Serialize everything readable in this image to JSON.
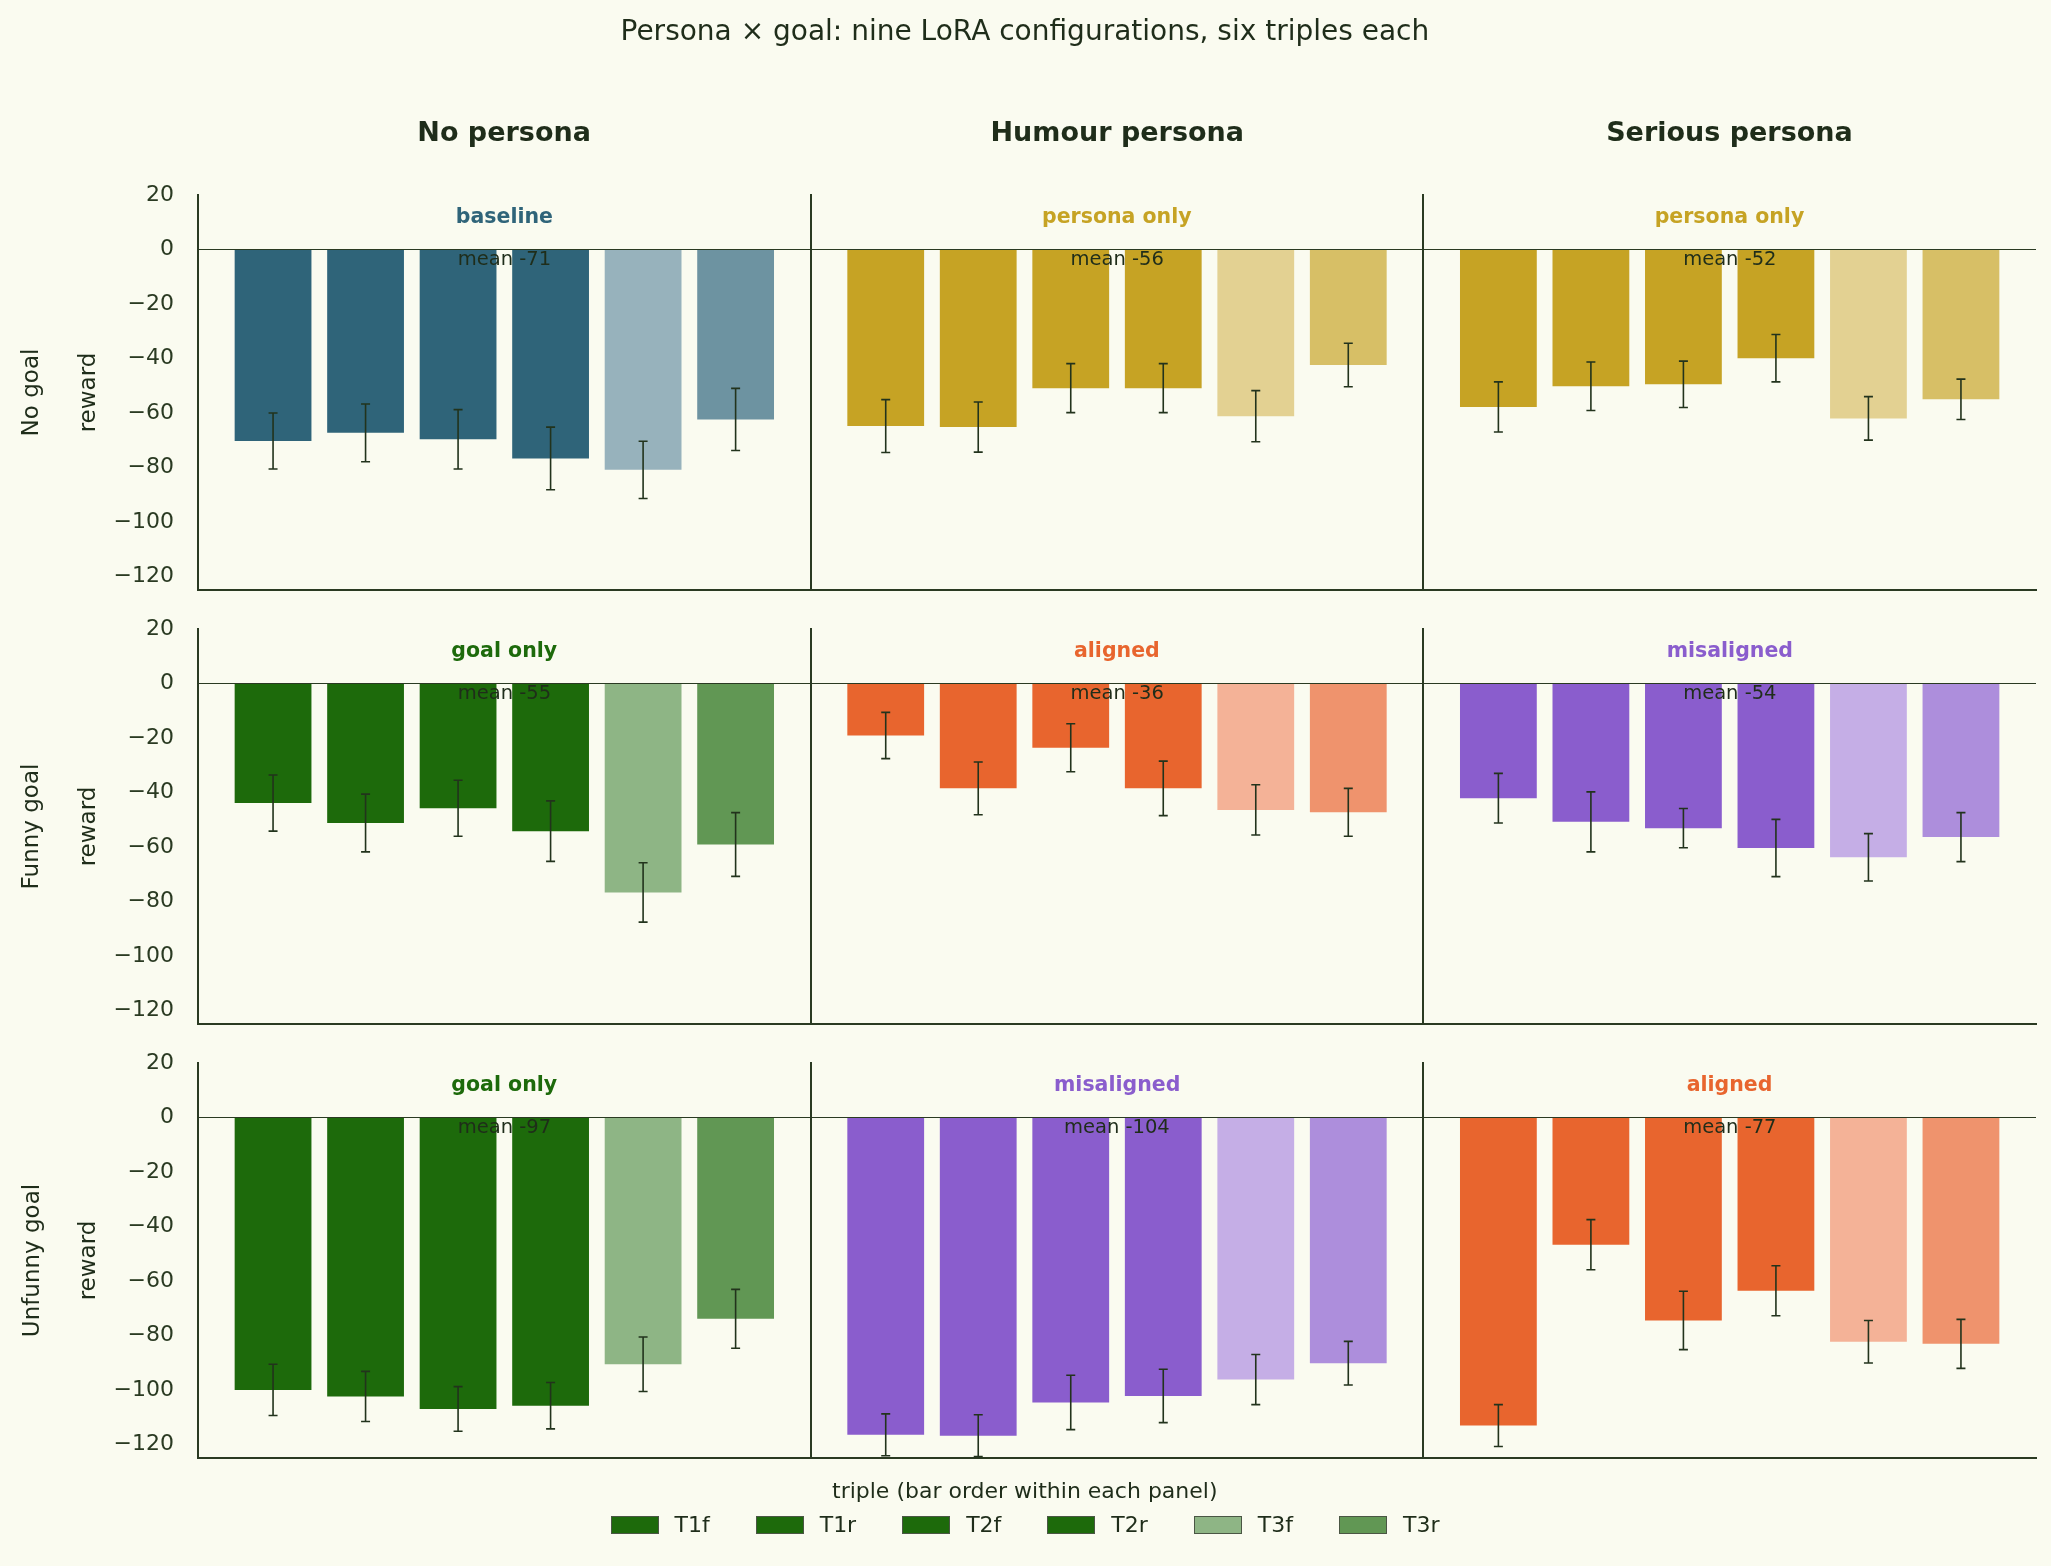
{
  "chart_data": [
    {
      "type": "other",
      "title": "Persona × goal: nine LoRA configurations, six triples each"
    },
    {
      "type": "bar",
      "title": "No goal",
      "ylabel": "reward",
      "categories": [
        "No persona",
        "Humour persona",
        "Serious persona"
      ],
      "annotations": [
        "baseline",
        "persona only",
        "persona only",
        "mean -71",
        "mean -56",
        "mean -52"
      ],
      "series": [
        {
          "colors": [
            "#2f6479",
            "#c6a324",
            "#c6a324"
          ],
          "values": [
            -70.3,
            -64.8,
            -57.8
          ],
          "errors": [
            10.3,
            9.7,
            9.2
          ]
        },
        {
          "colors": [
            "#2f6479",
            "#c6a324",
            "#c6a324"
          ],
          "values": [
            -67.3,
            -65.2,
            -50.2
          ],
          "errors": [
            10.6,
            9.2,
            8.9
          ]
        },
        {
          "colors": [
            "#2f6479",
            "#c6a324",
            "#c6a324"
          ],
          "values": [
            -69.7,
            -50.9,
            -49.5
          ],
          "errors": [
            10.9,
            9.0,
            8.5
          ]
        },
        {
          "colors": [
            "#2f6479",
            "#c6a324",
            "#c6a324"
          ],
          "values": [
            -76.7,
            -50.9,
            -39.9
          ],
          "errors": [
            11.5,
            9.0,
            8.7
          ]
        },
        {
          "colors": [
            "#97b2bc",
            "#e3d192",
            "#e3d192"
          ],
          "values": [
            -80.9,
            -61.2,
            -62.0
          ],
          "errors": [
            10.5,
            9.4,
            8.0
          ]
        },
        {
          "colors": [
            "#6d93a1",
            "#d7bf66",
            "#d7bf66"
          ],
          "values": [
            -62.4,
            -42.4,
            -55.0
          ],
          "errors": [
            11.4,
            8.0,
            7.4
          ]
        }
      ],
      "ylim": [
        -125,
        20
      ],
      "yticks": [
        20,
        0,
        -20,
        -40,
        -60,
        -80,
        -100,
        -120
      ],
      "ref_lines": [
        {
          "axis": "y",
          "value": 0
        }
      ]
    },
    {
      "type": "bar",
      "title": "Funny goal",
      "ylabel": "reward",
      "categories": [
        null,
        null,
        null
      ],
      "annotations": [
        "goal only",
        "aligned",
        "misaligned",
        "mean -55",
        "mean -36",
        "mean -54"
      ],
      "series": [
        {
          "colors": [
            "#1d6a0b",
            "#e8652e",
            "#8a5dcd"
          ],
          "values": [
            -43.9,
            -19.1,
            -42.1
          ],
          "errors": [
            10.3,
            8.5,
            9.1
          ]
        },
        {
          "colors": [
            "#1d6a0b",
            "#e8652e",
            "#8a5dcd"
          ],
          "values": [
            -51.2,
            -38.5,
            -50.8
          ],
          "errors": [
            10.6,
            9.7,
            11.0
          ]
        },
        {
          "colors": [
            "#1d6a0b",
            "#e8652e",
            "#8a5dcd"
          ],
          "values": [
            -45.8,
            -23.6,
            -53.1
          ],
          "errors": [
            10.3,
            8.8,
            7.2
          ]
        },
        {
          "colors": [
            "#1d6a0b",
            "#e8652e",
            "#8a5dcd"
          ],
          "values": [
            -54.2,
            -38.5,
            -60.4
          ],
          "errors": [
            11.1,
            10.0,
            10.5
          ]
        },
        {
          "colors": [
            "#8eb585",
            "#f4b297",
            "#c5aee6"
          ],
          "values": [
            -76.7,
            -46.4,
            -63.8
          ],
          "errors": [
            10.9,
            9.2,
            8.7
          ]
        },
        {
          "colors": [
            "#619754",
            "#ef936d",
            "#ad8edc"
          ],
          "values": [
            -59.1,
            -47.3,
            -56.4
          ],
          "errors": [
            11.7,
            8.8,
            9.0
          ]
        }
      ],
      "ylim": [
        -125,
        20
      ],
      "yticks": [
        20,
        0,
        -20,
        -40,
        -60,
        -80,
        -100,
        -120
      ],
      "tick_labels": "y",
      "ref_lines": [
        {
          "axis": "y",
          "value": 0
        }
      ]
    },
    {
      "type": "bar",
      "title": "Unfunny goal",
      "ylabel": "reward",
      "xlabel": "triple (bar order within each panel)",
      "legend": "bottom",
      "categories": [
        null,
        null,
        null
      ],
      "annotations": [
        "goal only",
        "misaligned",
        "aligned",
        "mean -97",
        "mean -104",
        "mean -77"
      ],
      "series": [
        {
          "name": "T1f",
          "colors": [
            "#1d6a0b",
            "#8a5dcd",
            "#e8652e"
          ],
          "values": [
            -100.0,
            -116.5,
            -113.1
          ],
          "errors": [
            9.4,
            7.7,
            7.7
          ]
        },
        {
          "name": "T1r",
          "colors": [
            "#1d6a0b",
            "#8a5dcd",
            "#e8652e"
          ],
          "values": [
            -102.4,
            -116.8,
            -46.7
          ],
          "errors": [
            9.2,
            7.7,
            9.2
          ]
        },
        {
          "name": "T2f",
          "colors": [
            "#1d6a0b",
            "#8a5dcd",
            "#e8652e"
          ],
          "values": [
            -107.0,
            -104.6,
            -74.5
          ],
          "errors": [
            8.2,
            10.0,
            10.7
          ]
        },
        {
          "name": "T2r",
          "colors": [
            "#1d6a0b",
            "#8a5dcd",
            "#e8652e"
          ],
          "values": [
            -105.8,
            -102.2,
            -63.6
          ],
          "errors": [
            8.5,
            9.8,
            9.2
          ]
        },
        {
          "name": "T3f",
          "colors": [
            "#8eb585",
            "#c5aee6",
            "#f4b297"
          ],
          "values": [
            -90.6,
            -96.2,
            -82.3
          ],
          "errors": [
            10.0,
            9.2,
            7.8
          ]
        },
        {
          "name": "T3r",
          "colors": [
            "#619754",
            "#ad8edc",
            "#ef936d"
          ],
          "values": [
            -73.9,
            -90.2,
            -83.1
          ],
          "errors": [
            10.8,
            8.0,
            9.0
          ]
        }
      ],
      "ylim": [
        -125,
        20
      ],
      "yticks": [
        20,
        0,
        -20,
        -40,
        -60,
        -80,
        -100,
        -120
      ],
      "tick_labels": "y",
      "ref_lines": [
        {
          "axis": "y",
          "value": 0
        }
      ]
    }
  ]
}
